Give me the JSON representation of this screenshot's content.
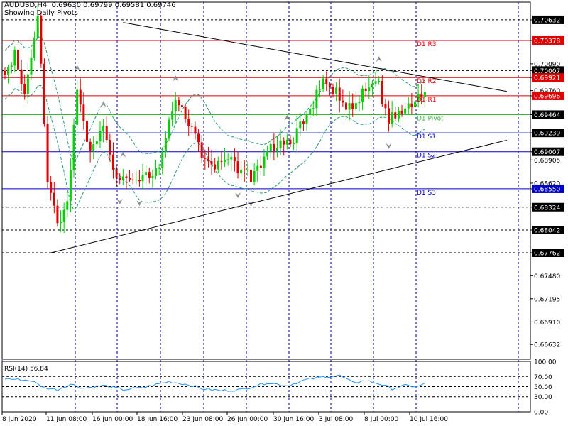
{
  "header": {
    "symbol_line": "AUDUSD,H4  0.69630 0.69799 0.69581 0.69746",
    "subtitle": "Showing Daily Pivots"
  },
  "colors": {
    "bull": "#00d000",
    "bear": "#e00000",
    "resistance": "#e00000",
    "pivot": "#3cb43c",
    "support": "#0000c8",
    "dashed_level": "#000000",
    "grid": "#0000a0",
    "band": "#2a9a7a",
    "trend": "#000000",
    "fractal": "#909090",
    "rsi_line": "#1e90ff"
  },
  "chart_data": [
    {
      "type": "candlestick",
      "symbol": "AUDUSD",
      "timeframe": "H4",
      "ylim": [
        0.6645,
        0.7085
      ],
      "y_ticks": [
        0.70632,
        0.70378,
        0.7009,
        0.70007,
        0.69921,
        0.6976,
        0.69696,
        0.69464,
        0.69239,
        0.69007,
        0.68905,
        0.6862,
        0.6855,
        0.68324,
        0.68042,
        0.67762,
        0.6748,
        0.67195,
        0.6691,
        0.66632
      ],
      "y_tick_labels": [
        "0.70632",
        "0.70378",
        "0.70090",
        "0.70007",
        "0.69921",
        "0.69760",
        "0.69696",
        "0.69464",
        "0.69239",
        "0.69007",
        "0.68905",
        "0.68620",
        "0.68550",
        "0.68324",
        "0.68042",
        "0.67762",
        "0.67480",
        "0.67195",
        "0.66910",
        "0.66632"
      ],
      "x_labels": [
        "8 Jun 2020",
        "11 Jun 08:00",
        "16 Jun 00:00",
        "18 Jun 16:00",
        "23 Jun 08:00",
        "26 Jun 00:00",
        "30 Jun 16:00",
        "3 Jul 08:00",
        "8 Jul 00:00",
        "10 Jul 16:00"
      ],
      "pivots": [
        {
          "label": "D1 R3",
          "value": 0.70378,
          "kind": "resistance"
        },
        {
          "label": "D1 R2",
          "value": 0.69921,
          "kind": "resistance"
        },
        {
          "label": "D1 R1",
          "value": 0.69696,
          "kind": "resistance"
        },
        {
          "label": "D1 Pivot",
          "value": 0.69464,
          "kind": "pivot"
        },
        {
          "label": "D1 S1",
          "value": 0.69239,
          "kind": "support"
        },
        {
          "label": "D1 S2",
          "value": 0.69007,
          "kind": "support"
        },
        {
          "label": "D1 S3",
          "value": 0.6855,
          "kind": "support"
        }
      ],
      "dashed_levels": [
        0.70632,
        0.70007,
        0.68324,
        0.68042,
        0.67762
      ],
      "highlighted_prices": [
        {
          "label": "0.70632",
          "style": "black"
        },
        {
          "label": "0.70378",
          "style": "red"
        },
        {
          "label": "0.70007",
          "style": "black"
        },
        {
          "label": "0.69921",
          "style": "red"
        },
        {
          "label": "0.69696",
          "style": "red"
        },
        {
          "label": "0.69464",
          "style": "black"
        },
        {
          "label": "0.69239",
          "style": "black"
        },
        {
          "label": "0.69007",
          "style": "black"
        },
        {
          "label": "0.68550",
          "style": "blue"
        },
        {
          "label": "0.68324",
          "style": "black"
        },
        {
          "label": "0.68042",
          "style": "black"
        },
        {
          "label": "0.67762",
          "style": "black"
        }
      ],
      "trendlines": [
        {
          "from": {
            "bar": 14,
            "price": 0.67762
          },
          "to": {
            "bar": 153,
            "price": 0.6915
          }
        },
        {
          "from": {
            "bar": 36,
            "price": 0.706
          },
          "to": {
            "bar": 153,
            "price": 0.6975
          }
        }
      ],
      "waypoints": [
        [
          0,
          0.6995
        ],
        [
          3,
          0.7022
        ],
        [
          6,
          0.6965
        ],
        [
          9,
          0.704
        ],
        [
          10,
          0.7072
        ],
        [
          13,
          0.687
        ],
        [
          16,
          0.681
        ],
        [
          19,
          0.684
        ],
        [
          22,
          0.697
        ],
        [
          26,
          0.6895
        ],
        [
          30,
          0.6935
        ],
        [
          34,
          0.687
        ],
        [
          38,
          0.6872
        ],
        [
          42,
          0.6865
        ],
        [
          47,
          0.6885
        ],
        [
          52,
          0.697
        ],
        [
          56,
          0.694
        ],
        [
          60,
          0.69
        ],
        [
          64,
          0.688
        ],
        [
          68,
          0.6895
        ],
        [
          72,
          0.6875
        ],
        [
          76,
          0.687
        ],
        [
          80,
          0.69
        ],
        [
          84,
          0.691
        ],
        [
          88,
          0.6915
        ],
        [
          92,
          0.6945
        ],
        [
          97,
          0.6985
        ],
        [
          101,
          0.6975
        ],
        [
          106,
          0.695
        ],
        [
          110,
          0.698
        ],
        [
          113,
          0.6995
        ],
        [
          117,
          0.694
        ],
        [
          121,
          0.6955
        ],
        [
          125,
          0.6965
        ],
        [
          128,
          0.6974
        ]
      ]
    },
    {
      "type": "line",
      "title": "RSI(14) 56.84",
      "indicator": "RSI",
      "period": 14,
      "last_value": 56.84,
      "ylim": [
        0,
        100
      ],
      "levels": [
        70,
        50,
        30
      ],
      "y_tick_labels": [
        "100.00",
        "70.00",
        "50.00",
        "30.00",
        "0.00"
      ],
      "y_ticks": [
        100,
        70,
        50,
        30,
        0
      ],
      "waypoints": [
        [
          0,
          66
        ],
        [
          8,
          62
        ],
        [
          12,
          48
        ],
        [
          16,
          44
        ],
        [
          20,
          55
        ],
        [
          24,
          47
        ],
        [
          30,
          52
        ],
        [
          36,
          44
        ],
        [
          42,
          48
        ],
        [
          50,
          60
        ],
        [
          56,
          54
        ],
        [
          60,
          46
        ],
        [
          66,
          42
        ],
        [
          72,
          44
        ],
        [
          80,
          58
        ],
        [
          86,
          52
        ],
        [
          92,
          64
        ],
        [
          98,
          70
        ],
        [
          102,
          72
        ],
        [
          106,
          58
        ],
        [
          110,
          62
        ],
        [
          114,
          56
        ],
        [
          118,
          46
        ],
        [
          122,
          52
        ],
        [
          126,
          50
        ],
        [
          128,
          56.84
        ]
      ]
    }
  ]
}
